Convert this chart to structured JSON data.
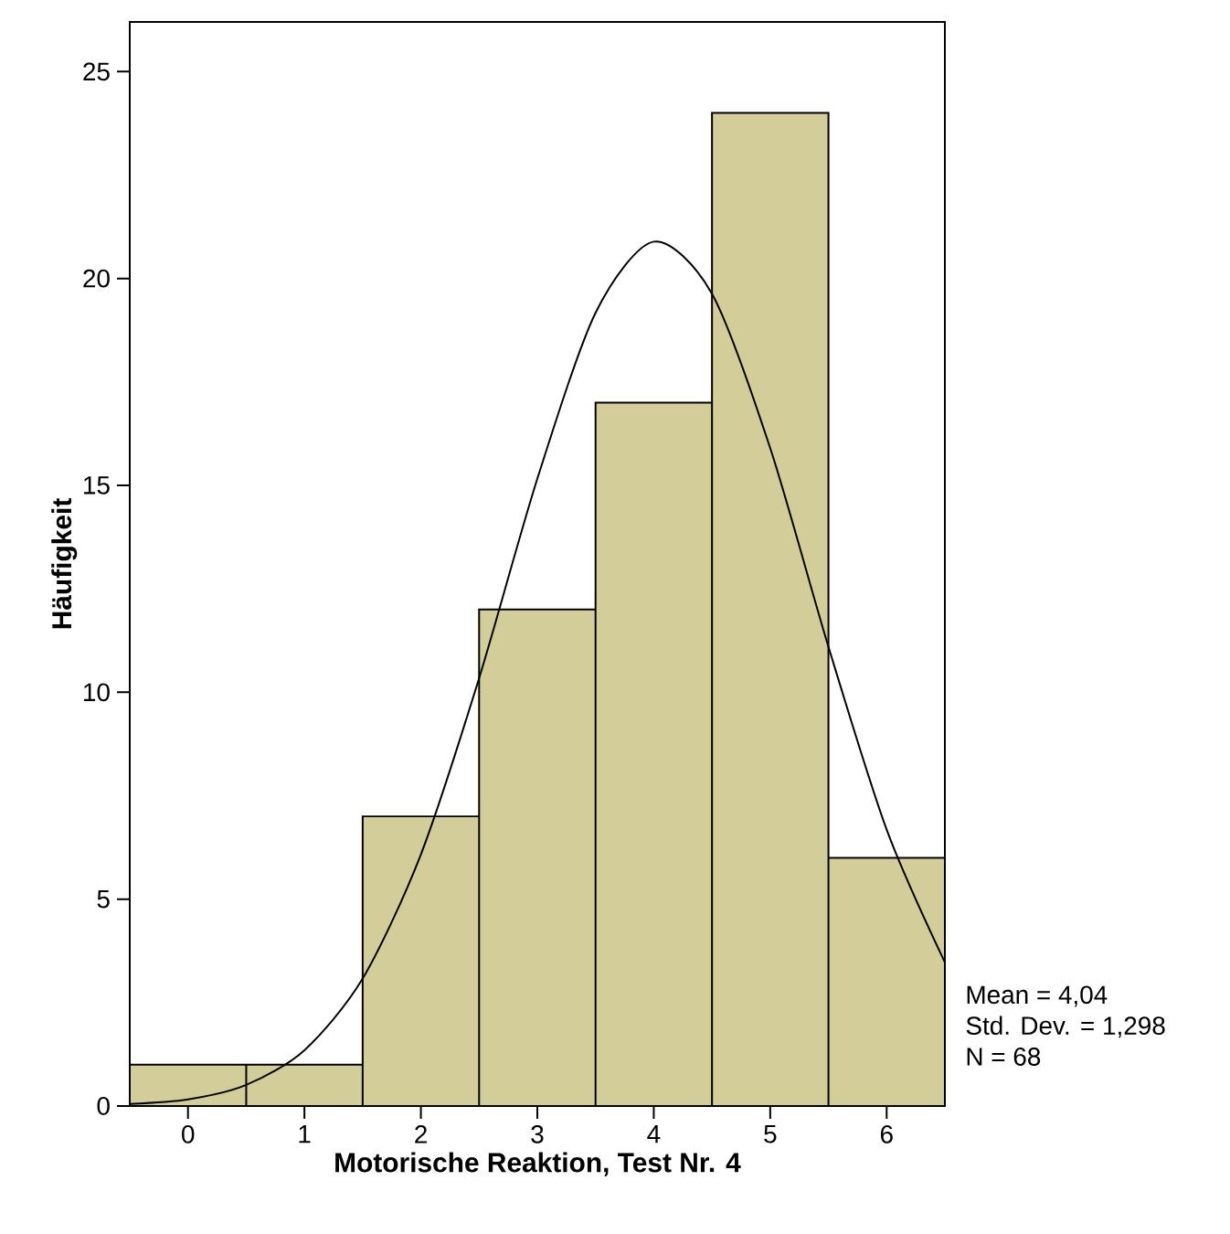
{
  "chart_data": {
    "type": "histogram",
    "xlabel": "Motorische Reaktion, Test Nr. 4",
    "ylabel": "Häufigkeit",
    "series": [
      {
        "type": "histogram",
        "bins": [
          -0.5,
          0.5,
          1.5,
          2.5,
          3.5,
          4.5,
          5.5,
          6.5
        ],
        "values": [
          1,
          1,
          7,
          12,
          17,
          24,
          6
        ],
        "color": "#d3ce99"
      },
      {
        "type": "line",
        "color": "#000000",
        "x": [
          -0.5,
          0,
          0.5,
          1,
          1.5,
          2,
          2.5,
          3,
          3.5,
          4,
          4.5,
          5,
          5.5,
          6,
          6.5
        ],
        "values": [
          0.05,
          0.16,
          0.51,
          1.35,
          3.08,
          6.08,
          10.34,
          15.16,
          19.17,
          20.89,
          19.63,
          15.9,
          11.1,
          6.68,
          3.47
        ]
      }
    ],
    "xlim": [
      -0.5,
      6.5
    ],
    "ylim": [
      0,
      26.2
    ],
    "xticks": [
      0,
      1,
      2,
      3,
      4,
      5,
      6
    ],
    "yticks": [
      0,
      5,
      10,
      15,
      20,
      25
    ],
    "annotations": [
      "Mean = 4,04",
      "Std. Dev. = 1,298",
      "N = 68"
    ]
  }
}
